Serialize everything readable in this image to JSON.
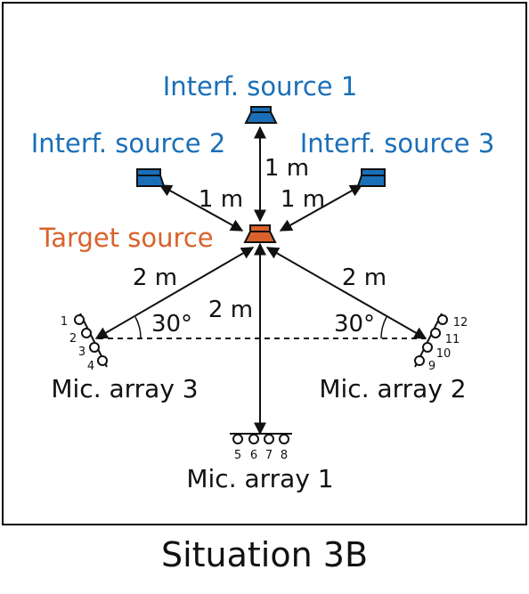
{
  "colors": {
    "interferer": "#1a6fb8",
    "target": "#d9622b",
    "ink": "#111111"
  },
  "sources": {
    "interf1": "Interf. source 1",
    "interf2": "Interf. source 2",
    "interf3": "Interf. source 3",
    "target": "Target source"
  },
  "distances": {
    "interf1_target": "1 m",
    "interf2_target": "1 m",
    "interf3_target": "1 m",
    "target_array3": "2 m",
    "target_array2": "2 m",
    "target_array1": "2 m"
  },
  "angles": {
    "array3": "30°",
    "array2": "30°"
  },
  "arrays": {
    "array1": {
      "label": "Mic. array 1",
      "mics": [
        "5",
        "6",
        "7",
        "8"
      ]
    },
    "array2": {
      "label": "Mic. array 2",
      "mics": [
        "9",
        "10",
        "11",
        "12"
      ]
    },
    "array3": {
      "label": "Mic. array 3",
      "mics": [
        "1",
        "2",
        "3",
        "4"
      ]
    }
  },
  "caption": "Situation 3B"
}
